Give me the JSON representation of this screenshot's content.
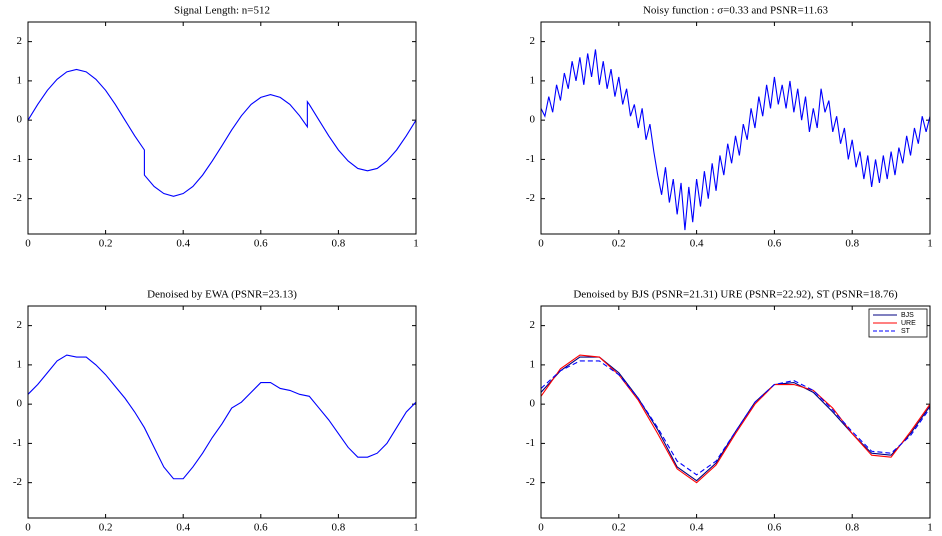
{
  "chart_data": [
    {
      "type": "line",
      "title": "Signal Length: n=512",
      "x": [
        0,
        0.025,
        0.05,
        0.075,
        0.1,
        0.125,
        0.15,
        0.175,
        0.2,
        0.225,
        0.25,
        0.275,
        0.3,
        0.3,
        0.325,
        0.35,
        0.375,
        0.4,
        0.425,
        0.45,
        0.475,
        0.5,
        0.525,
        0.55,
        0.575,
        0.6,
        0.625,
        0.65,
        0.675,
        0.7,
        0.72,
        0.72,
        0.725,
        0.75,
        0.775,
        0.8,
        0.825,
        0.85,
        0.875,
        0.9,
        0.925,
        0.95,
        0.975,
        1
      ],
      "series": [
        {
          "color": "#0000ff",
          "values": [
            0,
            0.4,
            0.76,
            1.04,
            1.23,
            1.29,
            1.23,
            1.04,
            0.76,
            0.4,
            0,
            -0.4,
            -0.76,
            -1.4,
            -1.69,
            -1.87,
            -1.94,
            -1.87,
            -1.69,
            -1.4,
            -1.04,
            -0.65,
            -0.25,
            0.11,
            0.4,
            0.58,
            0.65,
            0.58,
            0.4,
            0.11,
            -0.17,
            0.47,
            0.4,
            0,
            -0.4,
            -0.76,
            -1.04,
            -1.23,
            -1.29,
            -1.23,
            -1.04,
            -0.76,
            -0.4,
            0
          ]
        }
      ],
      "xlim": [
        0,
        1
      ],
      "ylim": [
        -2.9,
        2.5
      ],
      "xticks": [
        0,
        0.2,
        0.4,
        0.6,
        0.8,
        1
      ],
      "yticks": [
        -2,
        -1,
        0,
        1,
        2
      ],
      "grid": false
    },
    {
      "type": "line",
      "title": "Noisy function : σ=0.33 and PSNR=11.63",
      "x": [
        0,
        0.01,
        0.02,
        0.03,
        0.04,
        0.05,
        0.06,
        0.07,
        0.08,
        0.09,
        0.1,
        0.11,
        0.12,
        0.13,
        0.14,
        0.15,
        0.16,
        0.17,
        0.18,
        0.19,
        0.2,
        0.21,
        0.22,
        0.23,
        0.24,
        0.25,
        0.26,
        0.27,
        0.28,
        0.29,
        0.3,
        0.31,
        0.32,
        0.33,
        0.34,
        0.35,
        0.36,
        0.37,
        0.38,
        0.39,
        0.4,
        0.41,
        0.42,
        0.43,
        0.44,
        0.45,
        0.46,
        0.47,
        0.48,
        0.49,
        0.5,
        0.51,
        0.52,
        0.53,
        0.54,
        0.55,
        0.56,
        0.57,
        0.58,
        0.59,
        0.6,
        0.61,
        0.62,
        0.63,
        0.64,
        0.65,
        0.66,
        0.67,
        0.68,
        0.69,
        0.7,
        0.71,
        0.72,
        0.73,
        0.74,
        0.75,
        0.76,
        0.77,
        0.78,
        0.79,
        0.8,
        0.81,
        0.82,
        0.83,
        0.84,
        0.85,
        0.86,
        0.87,
        0.88,
        0.89,
        0.9,
        0.91,
        0.92,
        0.93,
        0.94,
        0.95,
        0.96,
        0.97,
        0.98,
        0.99,
        1
      ],
      "series": [
        {
          "color": "#0000ff",
          "values": [
            0.3,
            0.1,
            0.6,
            0.2,
            0.9,
            0.5,
            1.2,
            0.8,
            1.5,
            1.0,
            1.6,
            0.9,
            1.7,
            1.1,
            1.8,
            0.9,
            1.5,
            0.8,
            1.3,
            0.6,
            1.1,
            0.4,
            0.8,
            0.1,
            0.4,
            -0.2,
            0.3,
            -0.5,
            -0.1,
            -0.8,
            -1.4,
            -1.9,
            -1.2,
            -2.1,
            -1.5,
            -2.4,
            -1.6,
            -2.8,
            -1.7,
            -2.6,
            -1.5,
            -2.2,
            -1.3,
            -2.0,
            -1.1,
            -1.8,
            -0.9,
            -1.4,
            -0.6,
            -1.1,
            -0.4,
            -0.9,
            -0.1,
            -0.5,
            0.3,
            -0.2,
            0.6,
            0.1,
            0.9,
            0.3,
            1.1,
            0.4,
            0.9,
            0.3,
            1.0,
            0.2,
            0.8,
            0.0,
            0.6,
            -0.3,
            0.3,
            -0.2,
            0.8,
            0.2,
            0.5,
            -0.3,
            0.1,
            -0.6,
            -0.2,
            -1.0,
            -0.5,
            -1.2,
            -0.8,
            -1.5,
            -0.9,
            -1.7,
            -1.0,
            -1.6,
            -0.9,
            -1.5,
            -0.8,
            -1.4,
            -0.7,
            -1.1,
            -0.4,
            -0.9,
            -0.2,
            -0.6,
            0.1,
            -0.3,
            0.1
          ]
        }
      ],
      "xlim": [
        0,
        1
      ],
      "ylim": [
        -2.9,
        2.5
      ],
      "xticks": [
        0,
        0.2,
        0.4,
        0.6,
        0.8,
        1
      ],
      "yticks": [
        -2,
        -1,
        0,
        1,
        2
      ],
      "grid": false
    },
    {
      "type": "line",
      "title": "Denoised by EWA (PSNR=23.13)",
      "x": [
        0,
        0.025,
        0.05,
        0.075,
        0.1,
        0.125,
        0.15,
        0.175,
        0.2,
        0.225,
        0.25,
        0.275,
        0.3,
        0.325,
        0.35,
        0.375,
        0.4,
        0.425,
        0.45,
        0.475,
        0.5,
        0.525,
        0.55,
        0.575,
        0.6,
        0.625,
        0.65,
        0.675,
        0.7,
        0.725,
        0.75,
        0.775,
        0.8,
        0.825,
        0.85,
        0.875,
        0.9,
        0.925,
        0.95,
        0.975,
        1
      ],
      "series": [
        {
          "color": "#0000ff",
          "values": [
            0.25,
            0.5,
            0.8,
            1.1,
            1.25,
            1.2,
            1.2,
            1.0,
            0.75,
            0.45,
            0.15,
            -0.2,
            -0.6,
            -1.1,
            -1.6,
            -1.9,
            -1.9,
            -1.6,
            -1.25,
            -0.85,
            -0.5,
            -0.1,
            0.05,
            0.3,
            0.55,
            0.55,
            0.4,
            0.35,
            0.25,
            0.2,
            -0.1,
            -0.4,
            -0.75,
            -1.1,
            -1.35,
            -1.35,
            -1.25,
            -1.0,
            -0.6,
            -0.2,
            0.05
          ]
        }
      ],
      "xlim": [
        0,
        1
      ],
      "ylim": [
        -2.9,
        2.5
      ],
      "xticks": [
        0,
        0.2,
        0.4,
        0.6,
        0.8,
        1
      ],
      "yticks": [
        -2,
        -1,
        0,
        1,
        2
      ],
      "grid": false
    },
    {
      "type": "line",
      "title": "Denoised by BJS (PSNR=21.31) URE (PSNR=22.92), ST (PSNR=18.76)",
      "x": [
        0,
        0.05,
        0.1,
        0.15,
        0.2,
        0.25,
        0.3,
        0.35,
        0.4,
        0.45,
        0.5,
        0.55,
        0.6,
        0.65,
        0.7,
        0.75,
        0.8,
        0.85,
        0.9,
        0.95,
        1
      ],
      "series": [
        {
          "name": "BJS",
          "color": "#000080",
          "values": [
            0.3,
            0.85,
            1.2,
            1.2,
            0.8,
            0.15,
            -0.65,
            -1.6,
            -1.95,
            -1.5,
            -0.7,
            0.05,
            0.5,
            0.55,
            0.3,
            -0.2,
            -0.75,
            -1.25,
            -1.3,
            -0.75,
            -0.05
          ]
        },
        {
          "name": "URE",
          "color": "#ff0000",
          "values": [
            0.2,
            0.9,
            1.25,
            1.2,
            0.75,
            0.1,
            -0.75,
            -1.65,
            -2.0,
            -1.55,
            -0.75,
            0.0,
            0.5,
            0.5,
            0.35,
            -0.1,
            -0.75,
            -1.3,
            -1.35,
            -0.7,
            0.0
          ]
        },
        {
          "name": "ST",
          "color": "#0000ff",
          "dash": true,
          "values": [
            0.4,
            0.85,
            1.1,
            1.1,
            0.75,
            0.15,
            -0.6,
            -1.45,
            -1.8,
            -1.45,
            -0.7,
            0.05,
            0.5,
            0.6,
            0.35,
            -0.15,
            -0.7,
            -1.2,
            -1.25,
            -0.8,
            -0.1
          ]
        }
      ],
      "legend": "top-right",
      "xlim": [
        0,
        1
      ],
      "ylim": [
        -2.9,
        2.5
      ],
      "xticks": [
        0,
        0.2,
        0.4,
        0.6,
        0.8,
        1
      ],
      "yticks": [
        -2,
        -1,
        0,
        1,
        2
      ],
      "grid": false
    }
  ]
}
